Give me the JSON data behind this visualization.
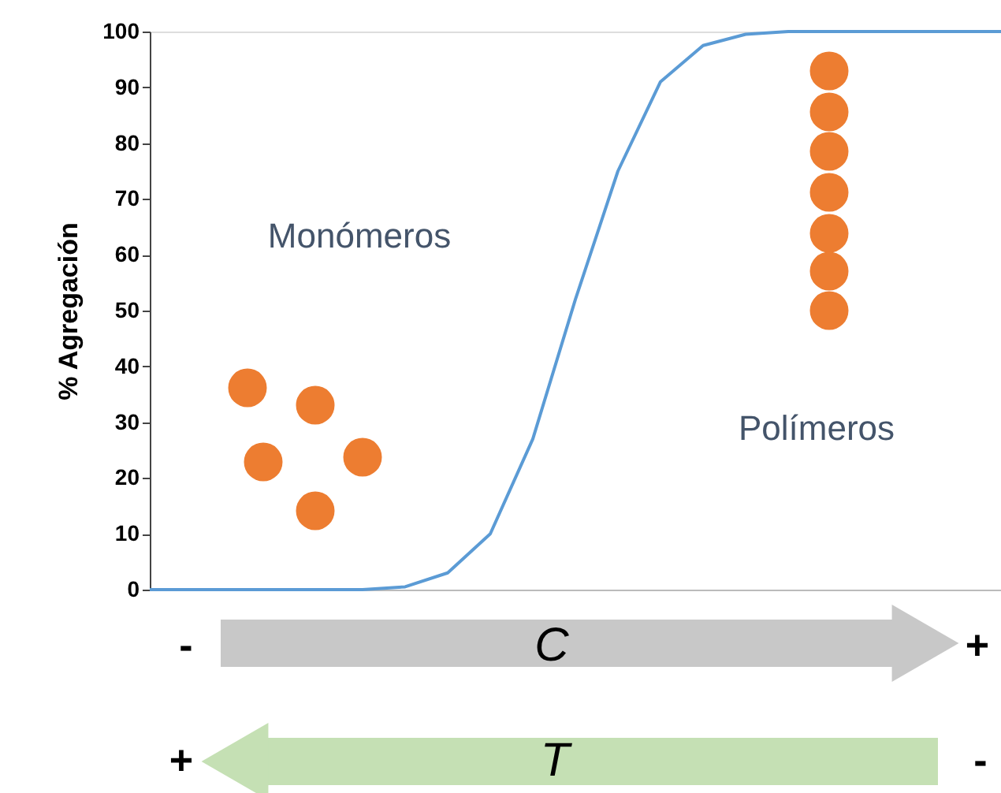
{
  "chart_data": {
    "type": "line",
    "ylabel": "% Agregación",
    "categories": [
      null,
      null,
      null,
      null,
      null,
      null,
      null,
      null,
      null,
      null,
      null,
      null,
      null,
      null,
      null,
      null,
      null,
      null,
      null,
      null,
      null
    ],
    "ylim": [
      0,
      100
    ],
    "yticks": [
      0,
      10,
      20,
      30,
      40,
      50,
      60,
      70,
      80,
      90,
      100
    ],
    "tick_labels": "y",
    "grid": false,
    "marker": "none",
    "line_style": "solid",
    "series": [
      {
        "color": "#5b9bd5",
        "values": [
          0,
          0,
          0,
          0,
          0,
          0,
          0.5,
          3,
          10,
          27,
          52,
          75,
          91,
          97.5,
          99.5,
          100,
          100,
          100,
          100,
          100,
          100
        ]
      }
    ],
    "annotations": [
      "Monómeros",
      "Polímeros",
      "-",
      "C",
      "+",
      "+",
      "T",
      "-"
    ]
  }
}
